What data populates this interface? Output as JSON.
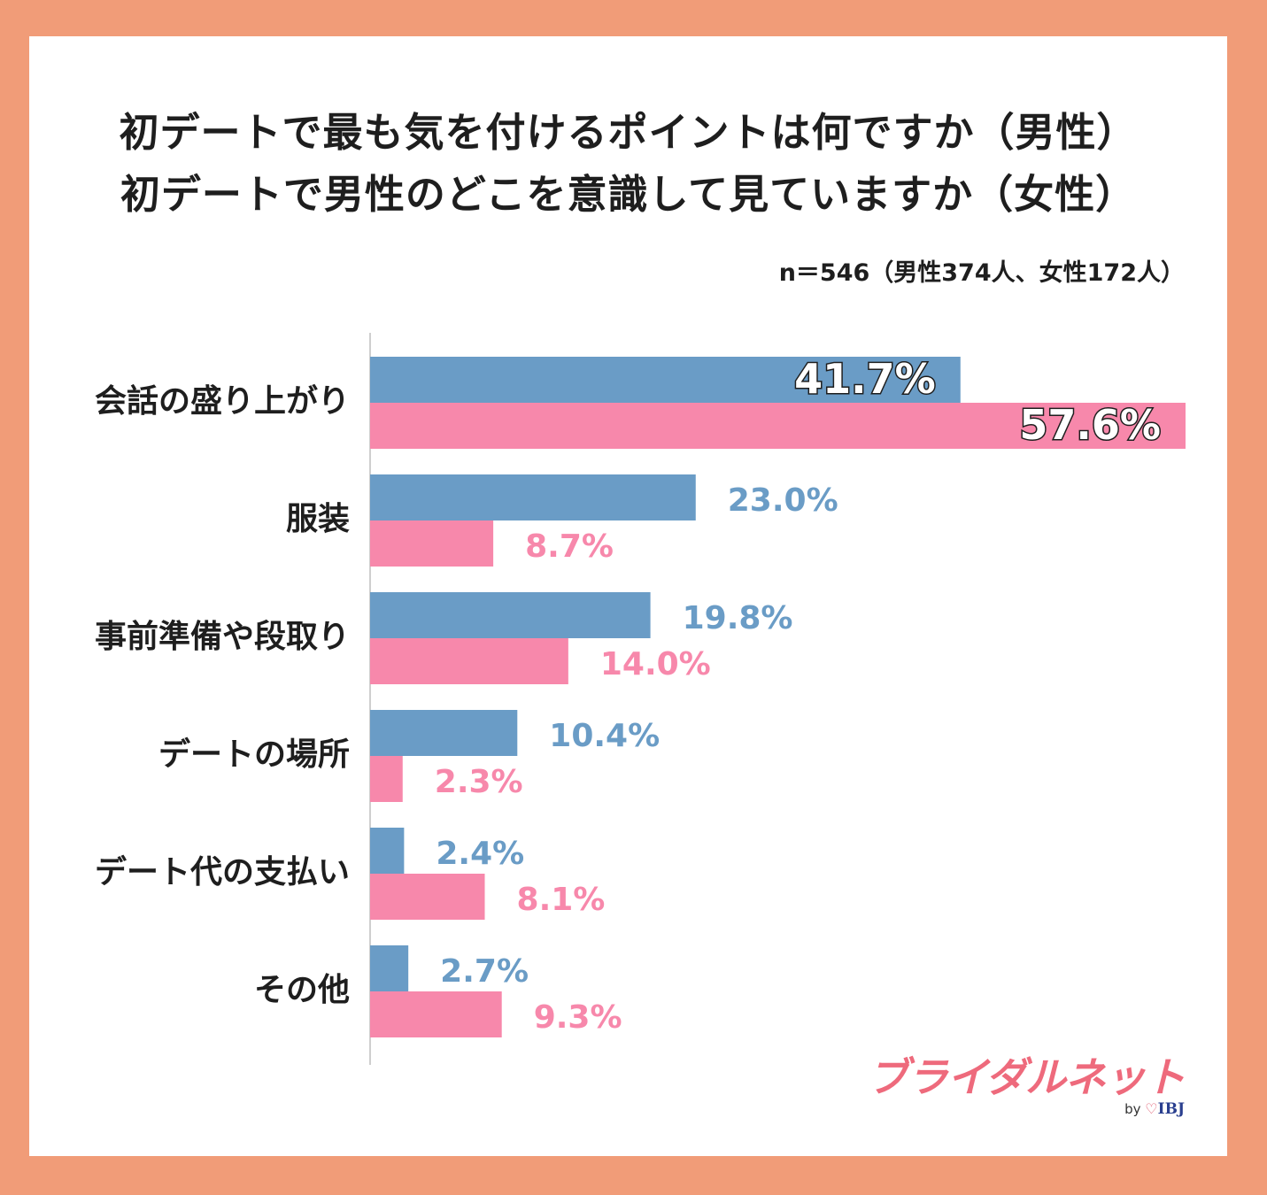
{
  "chart_data": {
    "type": "bar",
    "orientation": "horizontal",
    "title": "初デートで最も気を付けるポイントは何ですか（男性）",
    "subtitle": "初デートで男性のどこを意識して見ていますか（女性）",
    "note": "n＝546（男性374人、女性172人）",
    "categories": [
      "会話の盛り上がり",
      "服装",
      "事前準備や段取り",
      "デートの場所",
      "デート代の支払い",
      "その他"
    ],
    "series": [
      {
        "values": [
          41.7,
          23.0,
          19.8,
          10.4,
          2.4,
          2.7
        ],
        "color": "#6a9cc6"
      },
      {
        "values": [
          57.6,
          8.7,
          14.0,
          2.3,
          8.1,
          9.3
        ],
        "color": "#f788ab"
      }
    ],
    "value_labels": {
      "series0": [
        "41.7%",
        "23.0%",
        "19.8%",
        "10.4%",
        "2.4%",
        "2.7%"
      ],
      "series1": [
        "57.6%",
        "8.7%",
        "14.0%",
        "2.3%",
        "8.1%",
        "9.3%"
      ]
    },
    "xlim": [
      0,
      57.6
    ],
    "grid": false,
    "legend": "none"
  },
  "brand": {
    "logo_text": "ブライダルネット",
    "by": "by",
    "heart": "♡",
    "company": "IBJ",
    "color": "#ee6a7c"
  },
  "colors": {
    "background": "#f19c78",
    "card": "#ffffff",
    "axis": "#cfcfcf"
  }
}
